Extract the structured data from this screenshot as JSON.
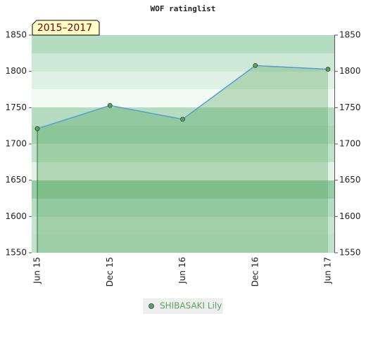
{
  "chart_data": {
    "type": "area",
    "title": "WOF ratinglist",
    "annotation": "2015–2017",
    "categories": [
      "Jun 15",
      "Dec 15",
      "Jun 16",
      "Dec 16",
      "Jun 17"
    ],
    "series": [
      {
        "name": "SHIBASAKI Lily",
        "color": "#5aa55e",
        "line_color": "#5b9bd5",
        "values": [
          1721,
          1753,
          1734,
          1808,
          1803
        ]
      }
    ],
    "ylim": [
      1550,
      1850
    ],
    "yticks": [
      1550,
      1600,
      1650,
      1700,
      1750,
      1800,
      1850
    ],
    "y2lim": [
      1550,
      1850
    ],
    "y2ticks": [
      1550,
      1600,
      1650,
      1700,
      1750,
      1800,
      1850
    ]
  }
}
